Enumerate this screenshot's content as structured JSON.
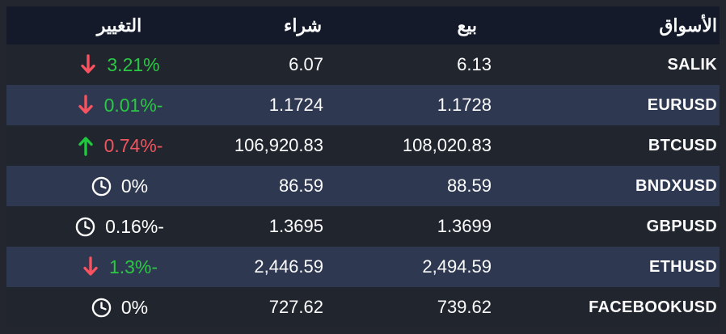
{
  "table": {
    "headers": {
      "market": "الأسواق",
      "sell": "بيع",
      "buy": "شراء",
      "change": "التغيير"
    },
    "rows": [
      {
        "market": "SALIK",
        "sell": "6.13",
        "buy": "6.07",
        "change": "3.21%",
        "change_color": "green",
        "icon": "arrow-down"
      },
      {
        "market": "EURUSD",
        "sell": "1.1728",
        "buy": "1.1724",
        "change": "0.01%-",
        "change_color": "green",
        "icon": "arrow-down"
      },
      {
        "market": "BTCUSD",
        "sell": "108,020.83",
        "buy": "106,920.83",
        "change": "0.74%-",
        "change_color": "red",
        "icon": "arrow-up"
      },
      {
        "market": "BNDXUSD",
        "sell": "88.59",
        "buy": "86.59",
        "change": "0%",
        "change_color": "white",
        "icon": "clock"
      },
      {
        "market": "GBPUSD",
        "sell": "1.3699",
        "buy": "1.3695",
        "change": "0.16%-",
        "change_color": "white",
        "icon": "clock"
      },
      {
        "market": "ETHUSD",
        "sell": "2,494.59",
        "buy": "2,446.59",
        "change": "1.3%-",
        "change_color": "green",
        "icon": "arrow-down"
      },
      {
        "market": "FACEBOOKUSD",
        "sell": "739.62",
        "buy": "727.62",
        "change": "0%",
        "change_color": "white",
        "icon": "clock"
      }
    ],
    "colors": {
      "green": "#2bc843",
      "red": "#f0545f",
      "white": "#ffffff",
      "down_arrow": "#f7525f",
      "up_arrow": "#1ec93c",
      "clock": "#ffffff",
      "header_bg": "#151a2b",
      "row_dark": "#21252e",
      "row_light": "#2e3850",
      "page_bg": "#23262f"
    }
  }
}
